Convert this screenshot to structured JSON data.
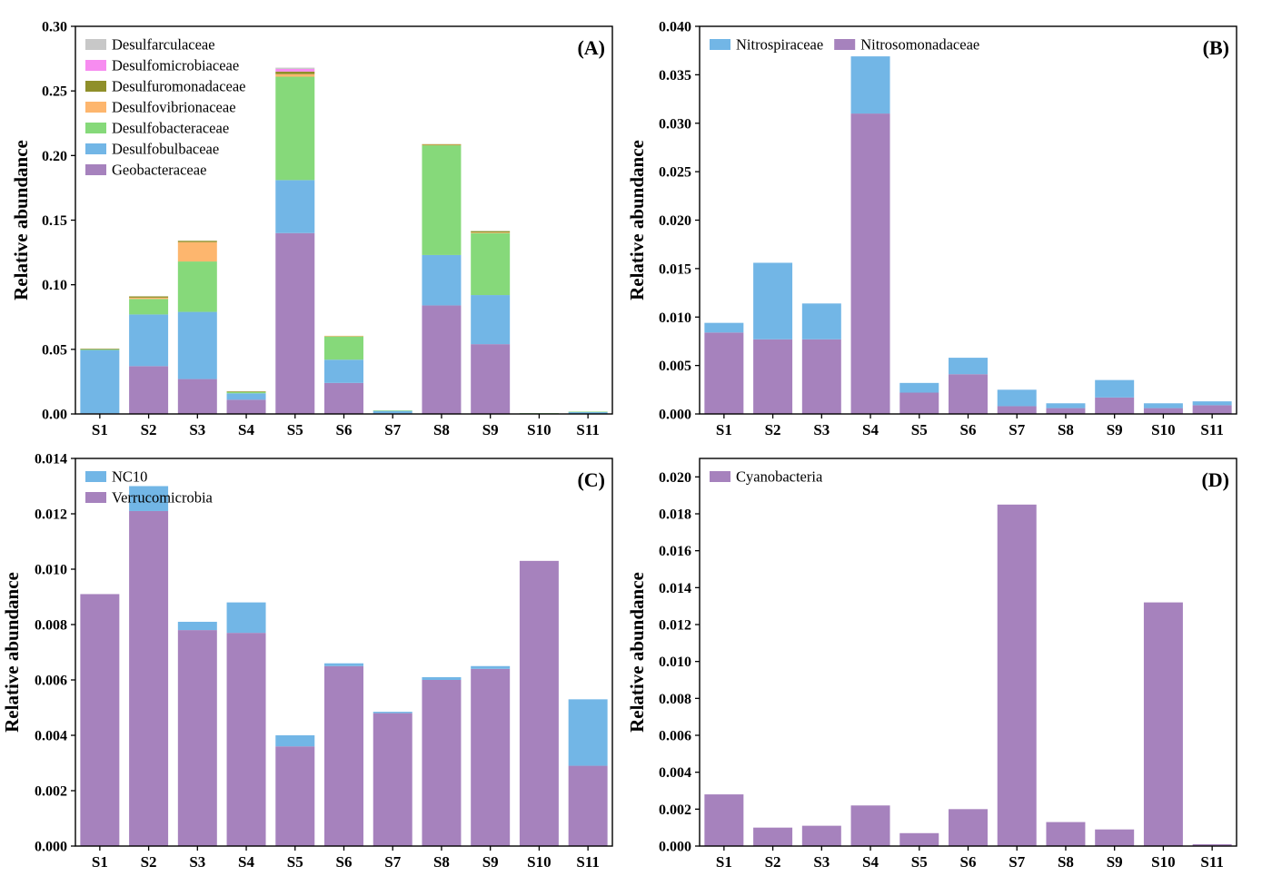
{
  "colors": {
    "Desulfarculaceae": "#c8c8c8",
    "Desulfomicrobiaceae": "#f78cf0",
    "Desulfuromonadaceae": "#8f8f2a",
    "Desulfovibrionaceae": "#fdb66e",
    "Desulfobacteraceae": "#86d97a",
    "Desulfobulbaceae": "#72b6e6",
    "Geobacteraceae": "#a682bd",
    "Nitrospiraceae": "#72b6e6",
    "Nitrosomonadaceae": "#a682bd",
    "NC10": "#72b6e6",
    "Verrucomicrobia": "#a682bd",
    "Cyanobacteria": "#a682bd"
  },
  "chart_data": [
    {
      "type": "bar",
      "stacked": true,
      "panel_label": "(A)",
      "ylabel": "Relative abundance",
      "xlabel": "",
      "ylim": [
        0,
        0.3
      ],
      "yticks": [
        "0.00",
        "0.05",
        "0.10",
        "0.15",
        "0.20",
        "0.25",
        "0.30"
      ],
      "categories": [
        "S1",
        "S2",
        "S3",
        "S4",
        "S5",
        "S6",
        "S7",
        "S8",
        "S9",
        "S10",
        "S11"
      ],
      "legend_position": "top-left",
      "legend_order": [
        "Desulfarculaceae",
        "Desulfomicrobiaceae",
        "Desulfuromonadaceae",
        "Desulfovibrionaceae",
        "Desulfobacteraceae",
        "Desulfobulbaceae",
        "Geobacteraceae"
      ],
      "series": [
        {
          "name": "Geobacteraceae",
          "values": [
            0.0005,
            0.037,
            0.027,
            0.011,
            0.14,
            0.024,
            0.0005,
            0.084,
            0.054,
            0.0002,
            0.0003
          ]
        },
        {
          "name": "Desulfobulbaceae",
          "values": [
            0.049,
            0.04,
            0.052,
            0.005,
            0.041,
            0.018,
            0.002,
            0.039,
            0.038,
            0.0002,
            0.0012
          ]
        },
        {
          "name": "Desulfobacteraceae",
          "values": [
            0.0005,
            0.012,
            0.039,
            0.001,
            0.08,
            0.018,
            0.0002,
            0.085,
            0.048,
            0.0002,
            0.0003
          ]
        },
        {
          "name": "Desulfovibrionaceae",
          "values": [
            0.0,
            0.001,
            0.015,
            0.0,
            0.002,
            0.0005,
            0.0,
            0.0003,
            0.0005,
            0.0,
            0.0
          ]
        },
        {
          "name": "Desulfuromonadaceae",
          "values": [
            0.0005,
            0.001,
            0.001,
            0.0005,
            0.002,
            0.0,
            0.0,
            0.0005,
            0.001,
            0.0,
            0.0
          ]
        },
        {
          "name": "Desulfomicrobiaceae",
          "values": [
            0.0,
            0.0,
            0.0,
            0.0,
            0.002,
            0.0,
            0.0,
            0.0,
            0.0,
            0.0,
            0.0
          ]
        },
        {
          "name": "Desulfarculaceae",
          "values": [
            0.0,
            0.0,
            0.0,
            0.0,
            0.001,
            0.0,
            0.0,
            0.0,
            0.0,
            0.0,
            0.0
          ]
        }
      ]
    },
    {
      "type": "bar",
      "stacked": true,
      "panel_label": "(B)",
      "ylabel": "Relative abundance",
      "xlabel": "",
      "ylim": [
        0,
        0.04
      ],
      "yticks": [
        "0.000",
        "0.005",
        "0.010",
        "0.015",
        "0.020",
        "0.025",
        "0.030",
        "0.035",
        "0.040"
      ],
      "categories": [
        "S1",
        "S2",
        "S3",
        "S4",
        "S5",
        "S6",
        "S7",
        "S8",
        "S9",
        "S10",
        "S11"
      ],
      "legend_position": "top-left",
      "legend_order": [
        "Nitrospiraceae",
        "Nitrosomonadaceae"
      ],
      "series": [
        {
          "name": "Nitrosomonadaceae",
          "values": [
            0.0084,
            0.0077,
            0.0077,
            0.031,
            0.0022,
            0.0041,
            0.0008,
            0.0006,
            0.0017,
            0.0006,
            0.0009
          ]
        },
        {
          "name": "Nitrospiraceae",
          "values": [
            0.001,
            0.0079,
            0.0037,
            0.0059,
            0.001,
            0.0017,
            0.0017,
            0.0005,
            0.0018,
            0.0005,
            0.0004
          ]
        }
      ]
    },
    {
      "type": "bar",
      "stacked": true,
      "panel_label": "(C)",
      "ylabel": "Relative abundance",
      "xlabel": "",
      "ylim": [
        0,
        0.014
      ],
      "yticks": [
        "0.000",
        "0.002",
        "0.004",
        "0.006",
        "0.008",
        "0.010",
        "0.012",
        "0.014"
      ],
      "categories": [
        "S1",
        "S2",
        "S3",
        "S4",
        "S5",
        "S6",
        "S7",
        "S8",
        "S9",
        "S10",
        "S11"
      ],
      "legend_position": "top-left",
      "legend_order": [
        "NC10",
        "Verrucomicrobia"
      ],
      "series": [
        {
          "name": "Verrucomicrobia",
          "values": [
            0.0091,
            0.0121,
            0.0078,
            0.0077,
            0.0036,
            0.0065,
            0.0048,
            0.006,
            0.0064,
            0.0103,
            0.0029
          ]
        },
        {
          "name": "NC10",
          "values": [
            0.0,
            0.0009,
            0.0003,
            0.0011,
            0.0004,
            0.0001,
            5e-05,
            0.0001,
            0.0001,
            0.0,
            0.0024
          ]
        }
      ]
    },
    {
      "type": "bar",
      "stacked": true,
      "panel_label": "(D)",
      "ylabel": "Relative abundance",
      "xlabel": "",
      "ylim": [
        0,
        0.021
      ],
      "yticks": [
        "0.000",
        "0.002",
        "0.004",
        "0.006",
        "0.008",
        "0.010",
        "0.012",
        "0.014",
        "0.016",
        "0.018",
        "0.020"
      ],
      "categories": [
        "S1",
        "S2",
        "S3",
        "S4",
        "S5",
        "S6",
        "S7",
        "S8",
        "S9",
        "S10",
        "S11"
      ],
      "legend_position": "top-left",
      "legend_order": [
        "Cyanobacteria"
      ],
      "series": [
        {
          "name": "Cyanobacteria",
          "values": [
            0.0028,
            0.001,
            0.0011,
            0.0022,
            0.0007,
            0.002,
            0.0185,
            0.0013,
            0.0009,
            0.0132,
            0.0001
          ]
        }
      ]
    }
  ]
}
